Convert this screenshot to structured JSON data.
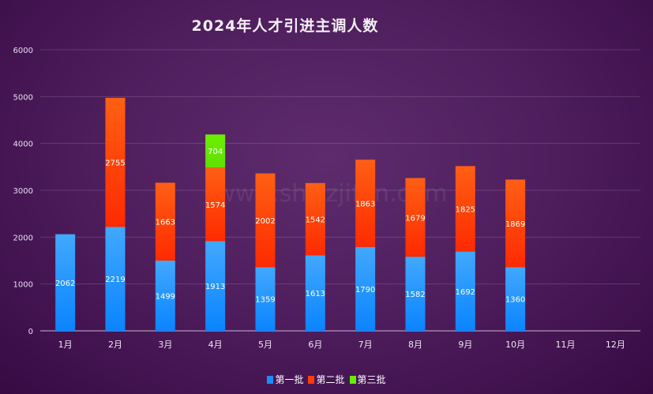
{
  "chart_data": {
    "type": "bar",
    "stacked": true,
    "title": "2024年人才引进主调人数",
    "categories": [
      "1月",
      "2月",
      "3月",
      "4月",
      "5月",
      "6月",
      "7月",
      "8月",
      "9月",
      "10月",
      "11月",
      "12月"
    ],
    "series": [
      {
        "name": "第一批",
        "color": "#1a8cff",
        "values": [
          2062,
          2219,
          1499,
          1913,
          1359,
          1613,
          1790,
          1582,
          1692,
          1360,
          null,
          null
        ]
      },
      {
        "name": "第二批",
        "color": "#ff3d0a",
        "values": [
          null,
          2755,
          1663,
          1574,
          2002,
          1542,
          1863,
          1679,
          1825,
          1869,
          null,
          null
        ]
      },
      {
        "name": "第三批",
        "color": "#66ee00",
        "values": [
          null,
          null,
          null,
          704,
          null,
          null,
          null,
          null,
          null,
          null,
          null,
          null
        ]
      }
    ],
    "yticks": [
      "0",
      "1000",
      "2000",
      "3000",
      "4000",
      "5000",
      "6000"
    ],
    "ylim": [
      0,
      6000
    ],
    "grid": true,
    "legend_position": "bottom",
    "watermark": "www.shjzzjifen.com"
  }
}
